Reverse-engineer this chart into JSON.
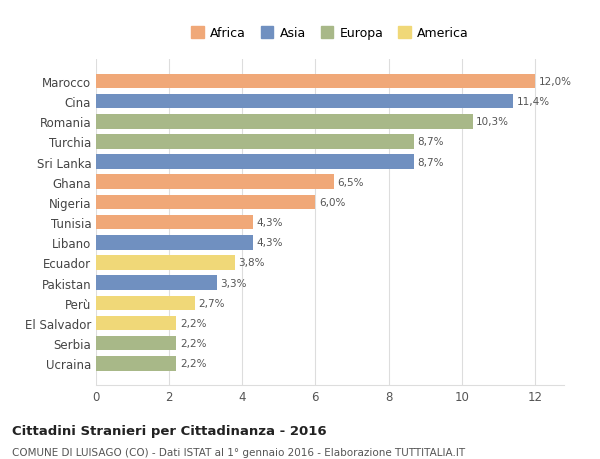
{
  "categories": [
    "Marocco",
    "Cina",
    "Romania",
    "Turchia",
    "Sri Lanka",
    "Ghana",
    "Nigeria",
    "Tunisia",
    "Libano",
    "Ecuador",
    "Pakistan",
    "Perù",
    "El Salvador",
    "Serbia",
    "Ucraina"
  ],
  "values": [
    12.0,
    11.4,
    10.3,
    8.7,
    8.7,
    6.5,
    6.0,
    4.3,
    4.3,
    3.8,
    3.3,
    2.7,
    2.2,
    2.2,
    2.2
  ],
  "labels": [
    "12,0%",
    "11,4%",
    "10,3%",
    "8,7%",
    "8,7%",
    "6,5%",
    "6,0%",
    "4,3%",
    "4,3%",
    "3,8%",
    "3,3%",
    "2,7%",
    "2,2%",
    "2,2%",
    "2,2%"
  ],
  "continents": [
    "Africa",
    "Asia",
    "Europa",
    "Europa",
    "Asia",
    "Africa",
    "Africa",
    "Africa",
    "Asia",
    "America",
    "Asia",
    "America",
    "America",
    "Europa",
    "Europa"
  ],
  "colors": {
    "Africa": "#F0A878",
    "Asia": "#7090C0",
    "Europa": "#A8B888",
    "America": "#F0D878"
  },
  "legend_order": [
    "Africa",
    "Asia",
    "Europa",
    "America"
  ],
  "title": "Cittadini Stranieri per Cittadinanza - 2016",
  "subtitle": "COMUNE DI LUISAGO (CO) - Dati ISTAT al 1° gennaio 2016 - Elaborazione TUTTITALIA.IT",
  "xlim": [
    0,
    12.8
  ],
  "xticks": [
    0,
    2,
    4,
    6,
    8,
    10,
    12
  ],
  "bg_color": "#ffffff",
  "grid_color": "#dddddd",
  "bar_height": 0.72
}
